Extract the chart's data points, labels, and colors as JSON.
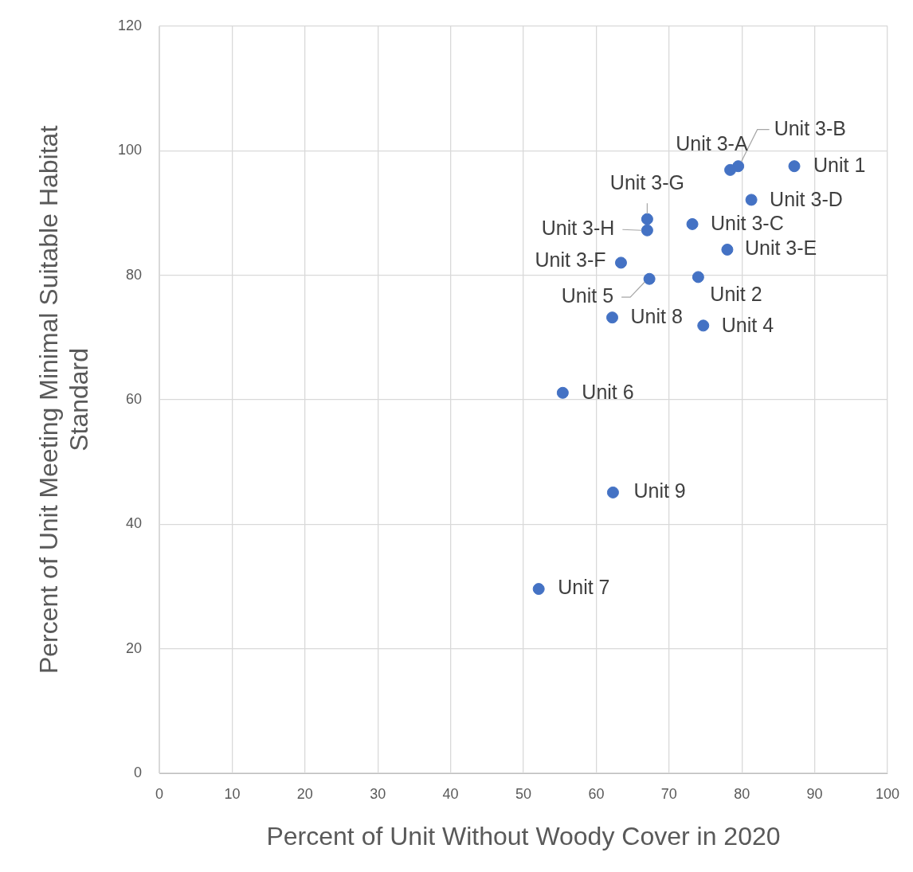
{
  "chart_data": {
    "type": "scatter",
    "xlabel": "Percent of Unit Without Woody Cover in 2020",
    "ylabel": "Percent of Unit Meeting Minimal Suitable Habitat Standard",
    "x": [
      87.2,
      79.5,
      78.4,
      81.3,
      67.0,
      67.0,
      73.2,
      78.0,
      63.4,
      67.3,
      74.0,
      62.2,
      74.7,
      55.4,
      62.3,
      52.1
    ],
    "series": [
      {
        "color": "#4472c4",
        "values": [
          97.5,
          97.5,
          96.9,
          92.1,
          89.0,
          87.2,
          88.2,
          84.1,
          82.0,
          79.4,
          79.7,
          73.2,
          71.9,
          61.1,
          45.1,
          29.6
        ]
      }
    ],
    "annotations": [
      {
        "text": "Unit 1",
        "x": 87.2,
        "y": 97.5
      },
      {
        "text": "Unit 3-B",
        "x": 79.5,
        "y": 97.5
      },
      {
        "text": "Unit 3-A",
        "x": 78.4,
        "y": 96.9
      },
      {
        "text": "Unit 3-D",
        "x": 81.3,
        "y": 92.1
      },
      {
        "text": "Unit 3-G",
        "x": 67.0,
        "y": 89.0
      },
      {
        "text": "Unit 3-H",
        "x": 67.0,
        "y": 87.2
      },
      {
        "text": "Unit 3-C",
        "x": 73.2,
        "y": 88.2
      },
      {
        "text": "Unit 3-E",
        "x": 78.0,
        "y": 84.1
      },
      {
        "text": "Unit 3-F",
        "x": 63.4,
        "y": 82.0
      },
      {
        "text": "Unit 5",
        "x": 67.3,
        "y": 79.4
      },
      {
        "text": "Unit 2",
        "x": 74.0,
        "y": 79.7
      },
      {
        "text": "Unit 8",
        "x": 62.2,
        "y": 73.2
      },
      {
        "text": "Unit 4",
        "x": 74.7,
        "y": 71.9
      },
      {
        "text": "Unit 6",
        "x": 55.4,
        "y": 61.1
      },
      {
        "text": "Unit 9",
        "x": 62.3,
        "y": 45.1
      },
      {
        "text": "Unit 7",
        "x": 52.1,
        "y": 29.6
      }
    ],
    "xlim": [
      0,
      100
    ],
    "xticks": [
      0,
      10,
      20,
      30,
      40,
      50,
      60,
      70,
      80,
      90,
      100
    ],
    "ylim": [
      0,
      120
    ],
    "yticks": [
      0,
      20,
      40,
      60,
      80,
      100,
      120
    ],
    "grid": true,
    "legend": false,
    "marker": "circle"
  }
}
